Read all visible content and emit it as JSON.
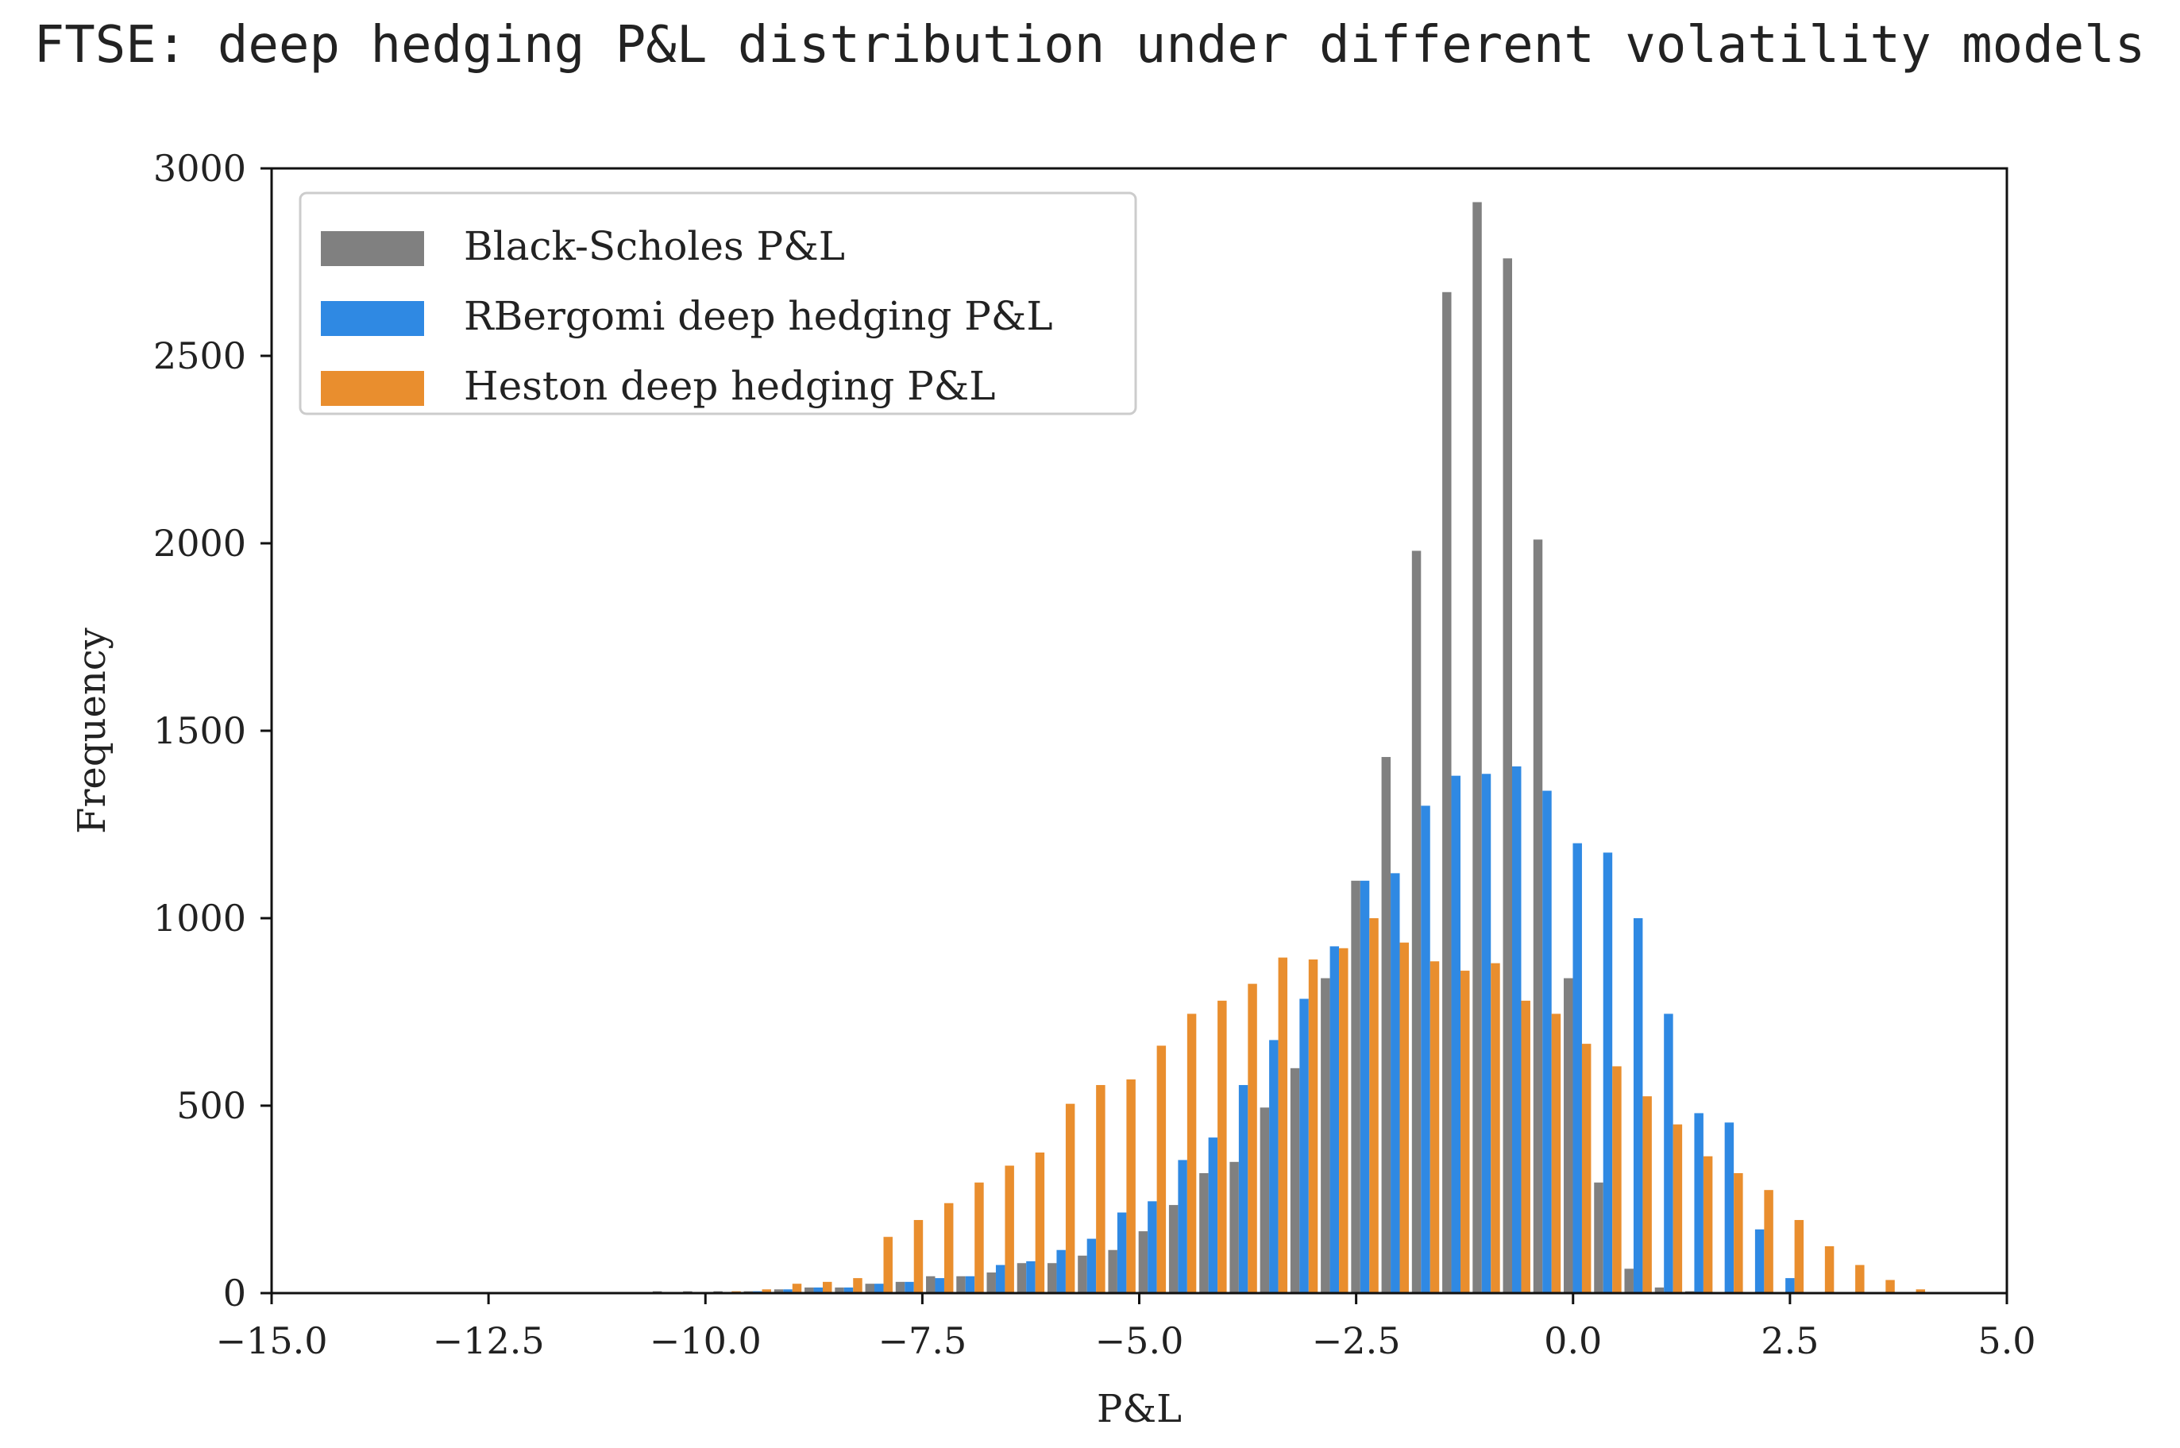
{
  "chart_data": {
    "type": "bar",
    "title": "FTSE: deep hedging P&L distribution under different volatility models",
    "xlabel": "P&L",
    "ylabel": "Frequency",
    "xlim": [
      -15.0,
      5.0
    ],
    "ylim": [
      0,
      3000
    ],
    "x_ticks": [
      "-15.0",
      "-12.5",
      "-10.0",
      "-7.5",
      "-5.0",
      "-2.5",
      "0.0",
      "2.5",
      "5.0"
    ],
    "y_ticks": [
      "0",
      "500",
      "1000",
      "1500",
      "2000",
      "2500",
      "3000"
    ],
    "grid": false,
    "legend_position": "top-left",
    "bin_centers": [
      -10.45,
      -10.1,
      -9.75,
      -9.4,
      -9.05,
      -8.7,
      -8.35,
      -8.0,
      -7.65,
      -7.3,
      -6.95,
      -6.6,
      -6.25,
      -5.9,
      -5.55,
      -5.2,
      -4.85,
      -4.5,
      -4.15,
      -3.8,
      -3.45,
      -3.1,
      -2.75,
      -2.4,
      -2.05,
      -1.7,
      -1.35,
      -1.0,
      -0.65,
      -0.3,
      0.05,
      0.4,
      0.75,
      1.1,
      1.45,
      1.8,
      2.15,
      2.5,
      2.85,
      3.2,
      3.55,
      3.9,
      4.25,
      4.6
    ],
    "series": [
      {
        "name": "Black-Scholes P&L",
        "color": "#808080",
        "values": [
          5,
          5,
          5,
          5,
          10,
          15,
          15,
          25,
          30,
          45,
          45,
          55,
          80,
          80,
          100,
          115,
          165,
          235,
          320,
          350,
          495,
          600,
          840,
          1100,
          1430,
          1980,
          2670,
          2910,
          2760,
          2010,
          840,
          295,
          65,
          15,
          5,
          0,
          0,
          0,
          0,
          0,
          0,
          0,
          0,
          0
        ]
      },
      {
        "name": "RBergomi deep hedging P&L",
        "color": "#2f89e3",
        "values": [
          0,
          0,
          0,
          5,
          10,
          15,
          15,
          25,
          30,
          40,
          45,
          75,
          85,
          115,
          145,
          215,
          245,
          355,
          415,
          555,
          675,
          785,
          925,
          1100,
          1120,
          1300,
          1380,
          1385,
          1405,
          1340,
          1200,
          1175,
          1000,
          745,
          480,
          455,
          170,
          40,
          0,
          0,
          0,
          0,
          0,
          0
        ]
      },
      {
        "name": "Heston deep hedging P&L",
        "color": "#e98e2e",
        "values": [
          0,
          0,
          5,
          10,
          25,
          30,
          40,
          150,
          195,
          240,
          295,
          340,
          375,
          505,
          555,
          570,
          660,
          745,
          780,
          825,
          895,
          890,
          920,
          1000,
          935,
          885,
          860,
          880,
          780,
          745,
          665,
          605,
          525,
          450,
          365,
          320,
          275,
          195,
          125,
          75,
          35,
          10,
          0,
          0
        ]
      }
    ]
  }
}
